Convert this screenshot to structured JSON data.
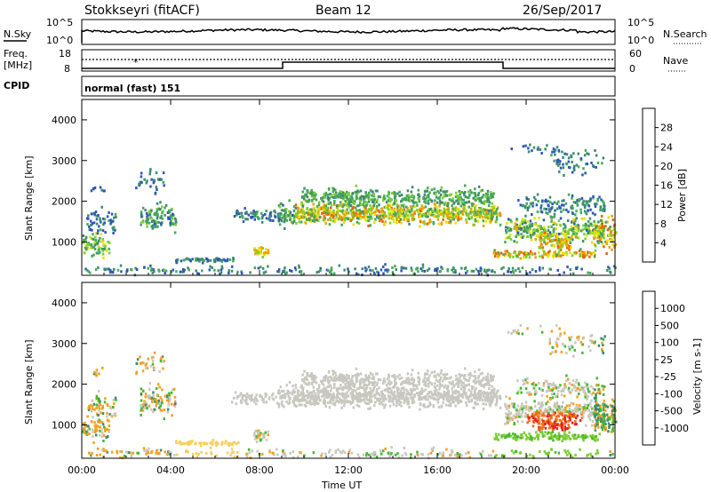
{
  "header": {
    "station": "Stokkseyri (fitACF)",
    "beam": "Beam 12",
    "date": "26/Sep/2017"
  },
  "noise_panel": {
    "left_label": "N.Sky",
    "right_label": "N.Search",
    "left_ticks": [
      "10^5",
      "10^0"
    ],
    "right_ticks": [
      "10^5",
      "10^0"
    ]
  },
  "freq_panel": {
    "left_label_1": "Freq.",
    "left_label_2": "[MHz]",
    "right_label": "Nave",
    "left_ticks": [
      "18",
      "8"
    ],
    "right_ticks": [
      "60",
      "0"
    ]
  },
  "cpid": {
    "label": "CPID",
    "mode": "normal (fast) 151"
  },
  "chart_data": [
    {
      "type": "heatmap",
      "quantity": "Power",
      "ylabel": "Slant Range [km]",
      "ylim": [
        180,
        4500
      ],
      "yticks": [
        "1000",
        "2000",
        "3000",
        "4000"
      ],
      "colorbar_label": "Power [dB]",
      "colorbar_ticks": [
        "4",
        "8",
        "12",
        "16",
        "20",
        "24",
        "28"
      ],
      "colors": [
        "#1f3cf5",
        "#2e55b8",
        "#3c8c6e",
        "#46a85a",
        "#7ccf32",
        "#e3e200",
        "#f0a000",
        "#f06000",
        "#e52020"
      ]
    },
    {
      "type": "heatmap",
      "quantity": "Velocity",
      "ylabel": "Slant Range [km]",
      "ylim": [
        180,
        4500
      ],
      "yticks": [
        "1000",
        "2000",
        "3000",
        "4000"
      ],
      "colorbar_label": "Velocity [m s-1]",
      "colorbar_ticks": [
        "1000",
        "500",
        "100",
        "25",
        "-25",
        "-100",
        "-500",
        "-1000"
      ],
      "colors": [
        "#1f3cf5",
        "#2e55b8",
        "#3c8c6e",
        "#46b830",
        "#c8c8c0",
        "#c8c8c0",
        "#f5a020",
        "#f07010",
        "#e52020"
      ],
      "xlabel": "Time UT",
      "xticks": [
        "00:00",
        "04:00",
        "08:00",
        "12:00",
        "16:00",
        "20:00",
        "00:00"
      ]
    }
  ]
}
